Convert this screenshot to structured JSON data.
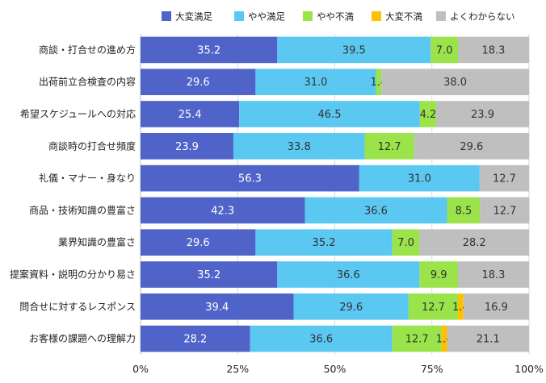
{
  "chart_data": {
    "type": "bar",
    "orientation": "horizontal",
    "stacked": true,
    "percent": true,
    "categories": [
      "商談・打合せの進め方",
      "出荷前立合検査の内容",
      "希望スケジュールへの対応",
      "商談時の打合せ頻度",
      "礼儀・マナー・身なり",
      "商品・技術知識の豊富さ",
      "業界知識の豊富さ",
      "提案資料・説明の分かり易さ",
      "問合せに対するレスポンス",
      "お客様の課題への理解力"
    ],
    "series": [
      {
        "name": "大変満足",
        "color": "#4F63C9",
        "values": [
          35.2,
          29.6,
          25.4,
          23.9,
          56.3,
          42.3,
          29.6,
          35.2,
          39.4,
          28.2
        ]
      },
      {
        "name": "やや満足",
        "color": "#5BC8F2",
        "values": [
          39.5,
          31.0,
          46.5,
          33.8,
          31.0,
          36.6,
          35.2,
          36.6,
          29.6,
          36.6
        ]
      },
      {
        "name": "やや不満",
        "color": "#9BE34A",
        "values": [
          7.0,
          1.4,
          4.2,
          12.7,
          0,
          8.5,
          7.0,
          9.9,
          12.7,
          12.7
        ]
      },
      {
        "name": "大変不満",
        "color": "#FFC000",
        "values": [
          0,
          0,
          0,
          0,
          0,
          0,
          0,
          0,
          1.4,
          1.4
        ]
      },
      {
        "name": "よくわからない",
        "color": "#BFBFBF",
        "values": [
          18.3,
          38.0,
          23.9,
          29.6,
          12.7,
          12.7,
          28.2,
          18.3,
          16.9,
          21.1
        ]
      }
    ],
    "xlim": [
      0,
      100
    ],
    "xticks": [
      "0%",
      "25%",
      "50%",
      "75%",
      "100%"
    ],
    "legend_position": "top",
    "grid": true
  }
}
